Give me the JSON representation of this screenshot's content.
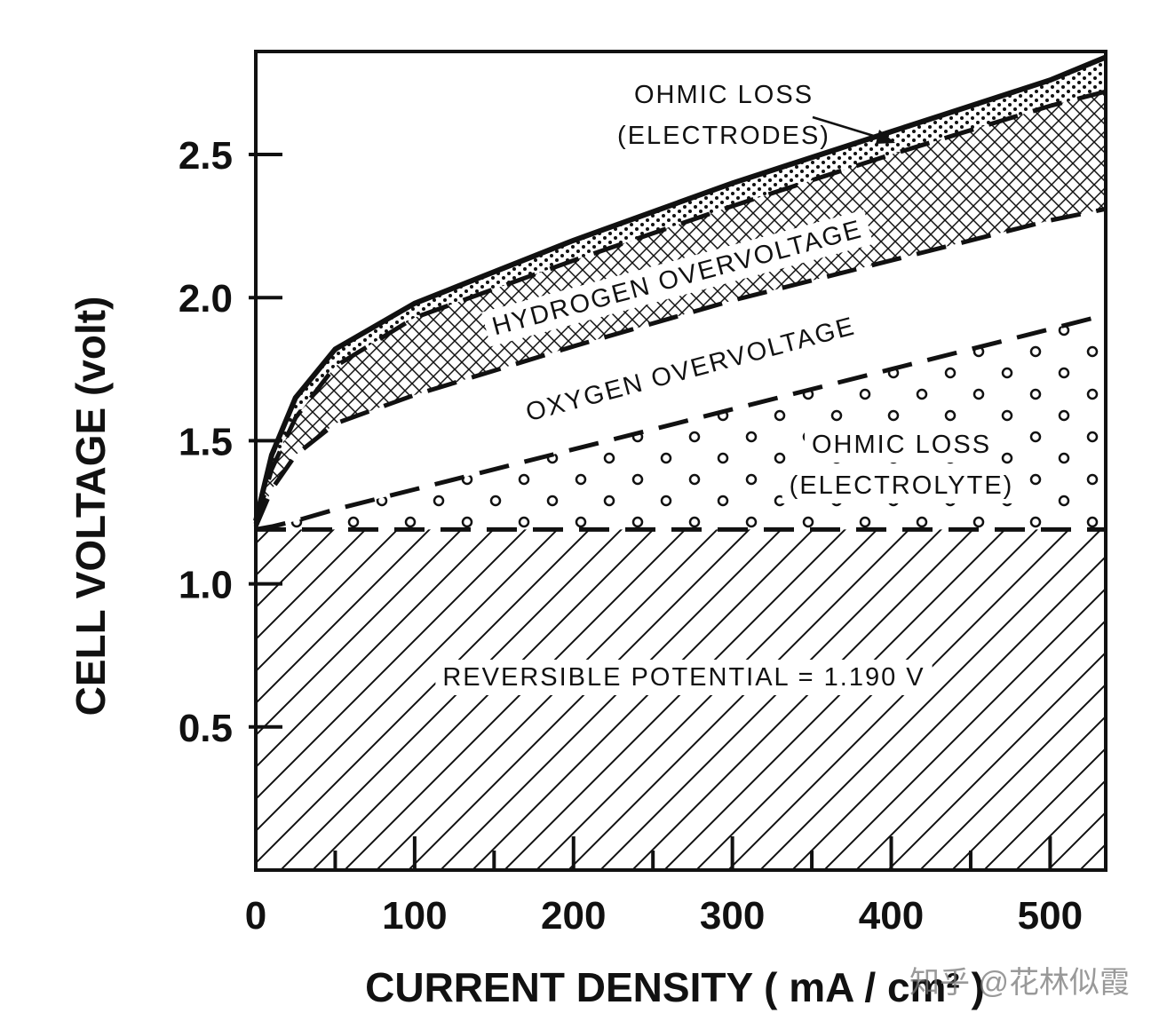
{
  "chart_data": {
    "type": "stacked_area",
    "xlabel": "CURRENT DENSITY ( mA / cm² )",
    "ylabel": "CELL VOLTAGE (volt)",
    "x": [
      0,
      10,
      25,
      50,
      100,
      200,
      300,
      400,
      500,
      535
    ],
    "series": [
      {
        "label": [
          "REVERSIBLE POTENTIAL = 1.190 V"
        ],
        "pattern": "hatch",
        "line": "dashed",
        "values": [
          1.19,
          1.19,
          1.19,
          1.19,
          1.19,
          1.19,
          1.19,
          1.19,
          1.19,
          1.19
        ]
      },
      {
        "label": [
          "OHMIC LOSS",
          "(ELECTROLYTE)"
        ],
        "pattern": "circles",
        "line": "dashed",
        "values": [
          0,
          0.01,
          0.03,
          0.07,
          0.14,
          0.28,
          0.42,
          0.56,
          0.7,
          0.75
        ]
      },
      {
        "label": [
          "OXYGEN OVERVOLTAGE"
        ],
        "pattern": "blank",
        "line": "dashed",
        "values": [
          0.01,
          0.13,
          0.23,
          0.3,
          0.33,
          0.36,
          0.38,
          0.38,
          0.38,
          0.37
        ]
      },
      {
        "label": [
          "HYDROGEN OVERVOLTAGE"
        ],
        "pattern": "crosshatch",
        "line": "dashed",
        "values": [
          0.01,
          0.07,
          0.13,
          0.2,
          0.27,
          0.3,
          0.33,
          0.37,
          0.4,
          0.41
        ]
      },
      {
        "label": [
          "OHMIC LOSS",
          "(ELECTRODES)"
        ],
        "pattern": "dots",
        "line": "solid",
        "values": [
          0.01,
          0.05,
          0.07,
          0.06,
          0.05,
          0.07,
          0.08,
          0.08,
          0.09,
          0.12
        ]
      }
    ],
    "color": "#111111",
    "xlim": [
      0,
      535
    ],
    "ylim": [
      0,
      2.86
    ],
    "xticks": [
      0,
      100,
      200,
      300,
      400,
      500
    ],
    "xminorticks": [
      50,
      150,
      250,
      350,
      450
    ],
    "yticks": [
      0.5,
      {
        "value": 1,
        "label": "1.0"
      },
      1.5,
      {
        "value": 2,
        "label": "2.0"
      },
      2.5
    ],
    "watermark": "知乎 @花林似霞"
  }
}
